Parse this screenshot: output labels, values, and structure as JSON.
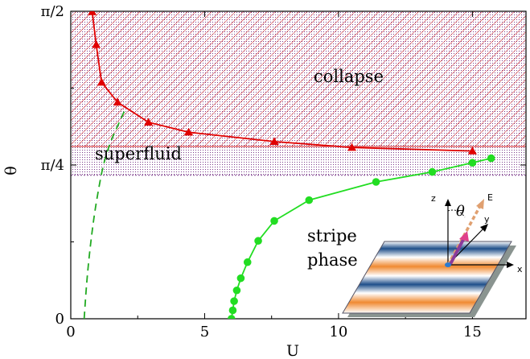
{
  "chart_data": {
    "type": "line",
    "xlabel": "U",
    "ylabel": "θ",
    "xlim": [
      0,
      17
    ],
    "ylim": [
      0,
      1.5708
    ],
    "x_ticks": [
      {
        "value": 0,
        "label": "0"
      },
      {
        "value": 5,
        "label": "5"
      },
      {
        "value": 10,
        "label": "10"
      },
      {
        "value": 15,
        "label": "15"
      }
    ],
    "y_ticks": [
      {
        "value": 0,
        "label": "0"
      },
      {
        "value": 0.7854,
        "label": "π/4"
      },
      {
        "value": 1.5708,
        "label": "π/2"
      }
    ],
    "series": [
      {
        "role": "collapse-boundary",
        "color": "#e00000",
        "marker": "triangle",
        "points": [
          [
            0.8,
            1.568
          ],
          [
            0.95,
            1.4
          ],
          [
            1.15,
            1.208
          ],
          [
            1.75,
            1.106
          ],
          [
            2.9,
            1.004
          ],
          [
            4.4,
            0.953
          ],
          [
            7.6,
            0.905
          ],
          [
            10.5,
            0.875
          ],
          [
            15.0,
            0.857
          ]
        ]
      },
      {
        "role": "stripe-boundary",
        "color": "#22dd22",
        "marker": "circle",
        "points": [
          [
            6.0,
            0.0
          ],
          [
            6.05,
            0.043
          ],
          [
            6.1,
            0.09
          ],
          [
            6.2,
            0.145
          ],
          [
            6.35,
            0.207
          ],
          [
            6.6,
            0.289
          ],
          [
            7.0,
            0.398
          ],
          [
            7.6,
            0.5
          ],
          [
            8.9,
            0.606
          ],
          [
            11.4,
            0.699
          ],
          [
            13.5,
            0.75
          ],
          [
            15.0,
            0.797
          ],
          [
            15.7,
            0.82
          ]
        ]
      },
      {
        "role": "superfluid-boundary",
        "color": "#22aa22",
        "style": "dashed",
        "points": [
          [
            0.5,
            0.0
          ],
          [
            0.6,
            0.2
          ],
          [
            0.75,
            0.4
          ],
          [
            0.95,
            0.6
          ],
          [
            1.3,
            0.85
          ],
          [
            2.0,
            1.06
          ]
        ]
      }
    ],
    "regions": {
      "collapse": "collapse",
      "superfluid": "superfluid",
      "stripe_line1": "stripe",
      "stripe_line2": "phase"
    },
    "region_bands": {
      "collapse_color": "#d42020",
      "superfluid_color": "#7a3a8a",
      "collapse_lower_theta": 0.88,
      "superfluid_lower_theta": 0.733
    },
    "inset": {
      "axis_labels": {
        "z": "z",
        "y": "y",
        "x": "x",
        "field": "E",
        "angle": "θ"
      },
      "stripe_colors": [
        "#1f4f8a",
        "#f08a32"
      ]
    }
  }
}
